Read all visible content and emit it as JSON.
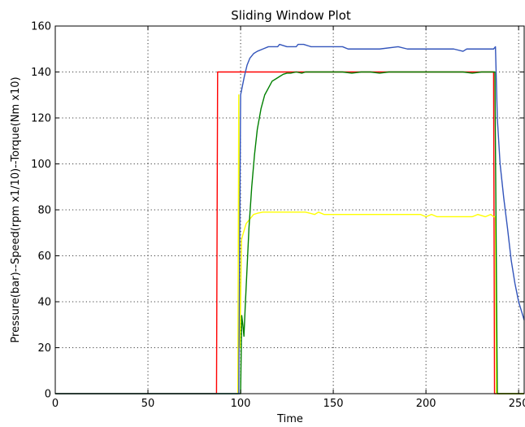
{
  "chart_data": {
    "type": "line",
    "title": "Sliding Window Plot",
    "xlabel": "Time",
    "ylabel": "Pressure(bar)--Speed(rpm x1/10)--Torque(Nm x10)",
    "xlim": [
      0,
      253
    ],
    "ylim": [
      0,
      160
    ],
    "xticks": [
      0,
      50,
      100,
      150,
      200,
      250
    ],
    "xtick_labels": [
      "0",
      "50",
      "100",
      "150",
      "200",
      "250"
    ],
    "yticks": [
      0,
      20,
      40,
      60,
      80,
      100,
      120,
      140,
      160
    ],
    "ytick_labels": [
      "0",
      "20",
      "40",
      "60",
      "80",
      "100",
      "120",
      "140",
      "160"
    ],
    "grid": true,
    "series": [
      {
        "color": "#ff0000",
        "x": [
          0,
          87,
          87.6,
          236.5,
          237,
          253
        ],
        "y": [
          0,
          0,
          140,
          140,
          0,
          0
        ]
      },
      {
        "color": "#ffff00",
        "x": [
          0,
          98.5,
          99,
          99.6,
          100.5,
          101.5,
          103,
          105,
          107,
          109,
          112,
          116,
          120,
          125,
          130,
          135,
          140,
          142,
          145,
          148,
          150,
          160,
          170,
          180,
          190,
          197,
          200,
          203,
          206,
          210,
          215,
          220,
          225,
          228,
          232,
          235,
          236.5,
          237.5,
          238,
          253
        ],
        "y": [
          0,
          0,
          130,
          20,
          67,
          70,
          74,
          76,
          78,
          78.5,
          79,
          79,
          79,
          79,
          79,
          79,
          78,
          79,
          78,
          78,
          78,
          78,
          78,
          78,
          78,
          78,
          77,
          78,
          77,
          77,
          77,
          77,
          77,
          78,
          77,
          78,
          77,
          77,
          0,
          0
        ]
      },
      {
        "color": "#008000",
        "x": [
          0,
          100,
          100.6,
          101.2,
          101.8,
          102.5,
          103.5,
          104.5,
          106,
          107.5,
          109,
          111,
          113,
          115,
          117,
          119,
          121,
          123,
          125,
          127,
          130,
          133,
          135,
          140,
          145,
          150,
          155,
          160,
          165,
          170,
          175,
          180,
          185,
          190,
          195,
          200,
          205,
          210,
          215,
          220,
          225,
          230,
          235,
          237.2,
          238.5,
          253
        ],
        "y": [
          0,
          0,
          34,
          30,
          25,
          38,
          55,
          72,
          90,
          104,
          115,
          124,
          130,
          133,
          136,
          137,
          138,
          139,
          139.5,
          139.5,
          140,
          139.5,
          140,
          140,
          140,
          140,
          140,
          139.5,
          140,
          140,
          139.5,
          140,
          140,
          140,
          140,
          140,
          140,
          140,
          140,
          140,
          139.5,
          140,
          140,
          140,
          0,
          0
        ]
      },
      {
        "color": "#3355bb",
        "x": [
          0,
          99,
          100,
          101,
          102,
          103.5,
          105,
          107,
          109,
          112,
          115,
          120,
          121,
          125,
          130,
          131,
          134,
          138,
          145,
          155,
          158,
          161,
          165,
          175,
          185,
          190,
          200,
          210,
          215,
          220,
          222,
          225,
          230,
          235,
          236.5,
          237.5,
          238.5,
          240,
          242,
          244,
          246,
          248,
          250,
          253
        ],
        "y": [
          0,
          0,
          130,
          134,
          138,
          143,
          146,
          148,
          149,
          150,
          151,
          151,
          152,
          151,
          151,
          152,
          152,
          151,
          151,
          151,
          150,
          150,
          150,
          150,
          151,
          150,
          150,
          150,
          150,
          149,
          150,
          150,
          150,
          150,
          150,
          151,
          120,
          100,
          85,
          72,
          58,
          48,
          40,
          32
        ]
      }
    ]
  }
}
